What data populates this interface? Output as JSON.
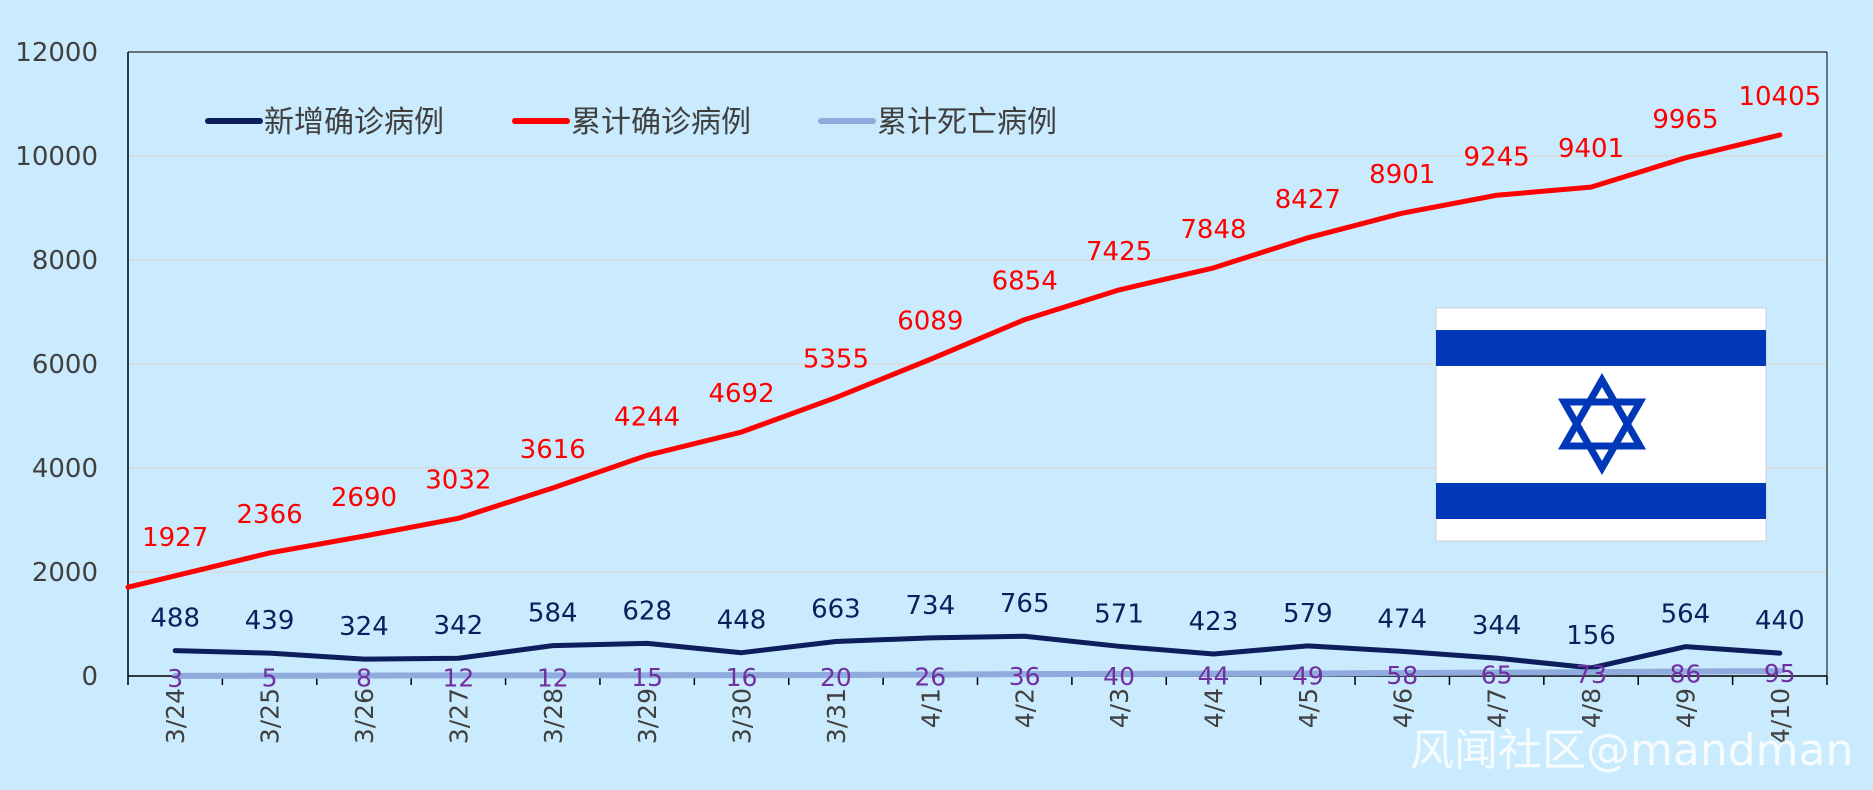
{
  "chart_data": {
    "type": "line",
    "categories": [
      "3/24",
      "3/25",
      "3/26",
      "3/27",
      "3/28",
      "3/29",
      "3/30",
      "3/31",
      "4/1",
      "4/2",
      "4/3",
      "4/4",
      "4/5",
      "4/6",
      "4/7",
      "4/8",
      "4/9",
      "4/10"
    ],
    "series": [
      {
        "name": "新增确诊病例",
        "color": "#0d1e5c",
        "values": [
          488,
          439,
          324,
          342,
          584,
          628,
          448,
          663,
          734,
          765,
          571,
          423,
          579,
          474,
          344,
          156,
          564,
          440
        ]
      },
      {
        "name": "累计确诊病例",
        "color": "#ff0000",
        "values": [
          1927,
          2366,
          2690,
          3032,
          3616,
          4244,
          4692,
          5355,
          6089,
          6854,
          7425,
          7848,
          8427,
          8901,
          9245,
          9401,
          9965,
          10405
        ]
      },
      {
        "name": "累计死亡病例",
        "color": "#8faadc",
        "label_color": "#7030a0",
        "values": [
          3,
          5,
          8,
          12,
          12,
          15,
          16,
          20,
          26,
          36,
          40,
          44,
          49,
          58,
          65,
          73,
          86,
          95
        ]
      }
    ],
    "ylim": [
      0,
      12000
    ],
    "yticks": [
      "0",
      "2000",
      "4000",
      "6000",
      "8000",
      "10000",
      "12000"
    ],
    "title": "",
    "xlabel": "",
    "ylabel": "",
    "grid": true,
    "legend_position": "top-left",
    "data_labels": true
  },
  "flag": {
    "icon": "israel-flag-icon",
    "stripe_color": "#0038b8",
    "field_color": "#ffffff"
  },
  "watermark": "风闻社区@mandman",
  "colors": {
    "background": "#c9ebfd",
    "gridline": "#d9d9d9",
    "axis": "#000000"
  }
}
